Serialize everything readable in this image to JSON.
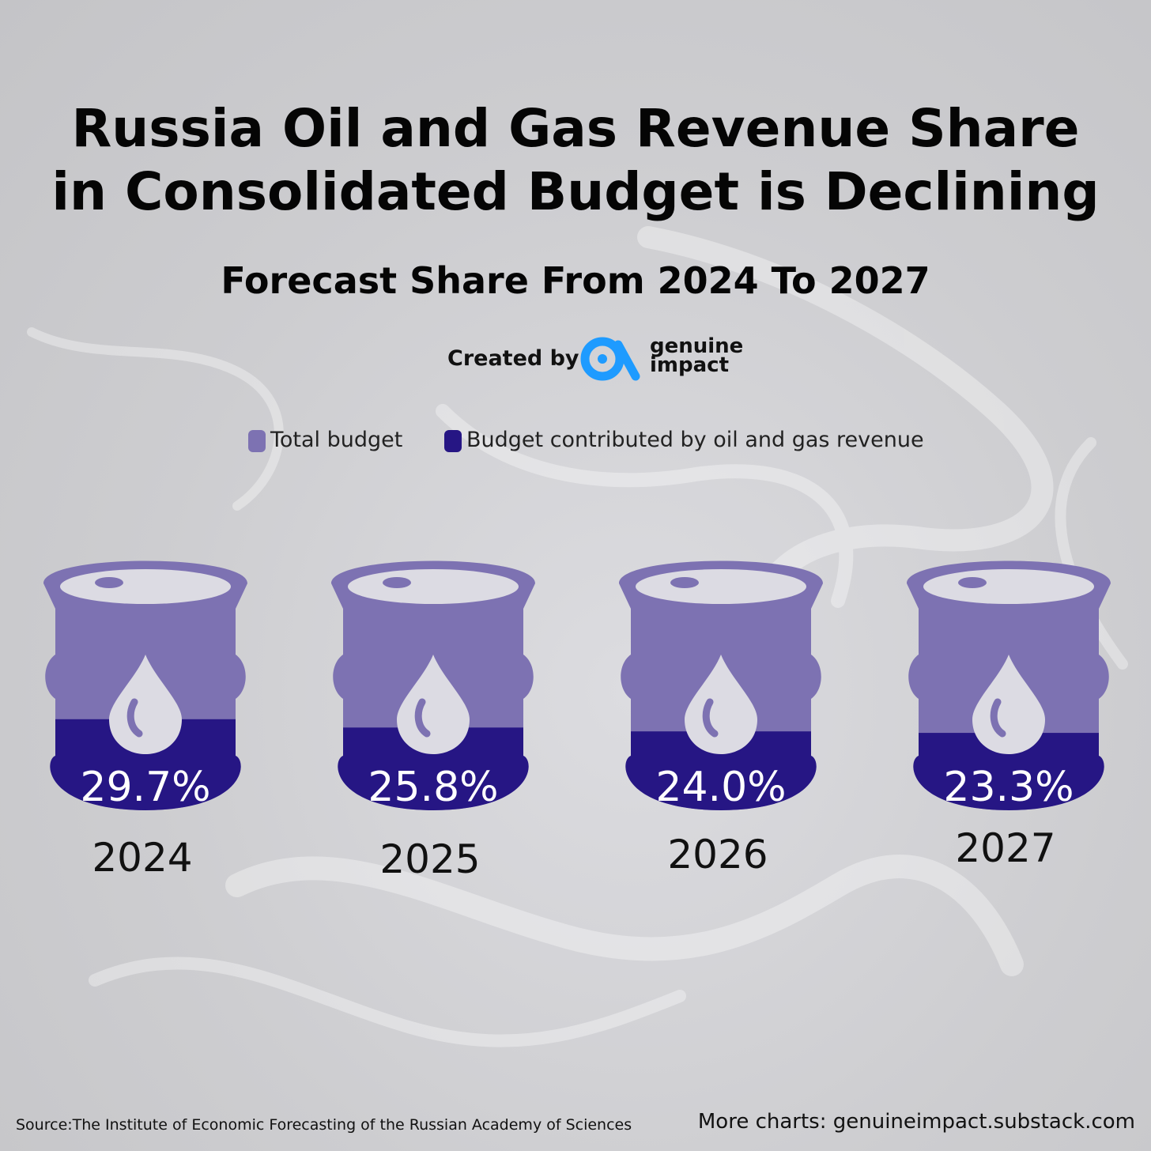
{
  "header": {
    "title_line1": "Russia Oil and Gas Revenue Share",
    "title_line2": "in Consolidated Budget is Declining",
    "subtitle": "Forecast Share From 2024 To 2027"
  },
  "credit": {
    "label": "Created by",
    "brand_line1": "genuine",
    "brand_line2": "impact",
    "brand_color": "#1e9bff"
  },
  "colors": {
    "total": "#7d72b2",
    "oil_gas": "#261684",
    "drop": "#dcdbe3"
  },
  "chart_data": {
    "type": "bar",
    "categories": [
      "2024",
      "2025",
      "2026",
      "2027"
    ],
    "series": [
      {
        "name": "Total budget",
        "values": [
          100,
          100,
          100,
          100
        ]
      },
      {
        "name": "Budget contributed by oil and gas revenue",
        "values": [
          29.7,
          25.8,
          24.0,
          23.3
        ]
      }
    ],
    "labels": [
      "29.7%",
      "25.8%",
      "24.0%",
      "23.3%"
    ],
    "ylim": [
      0,
      100
    ],
    "legend": [
      "Total budget",
      "Budget contributed by oil and gas revenue"
    ],
    "legend_position": "top"
  },
  "footer": {
    "source": "Source:The Institute of Economic Forecasting of the Russian Academy of Sciences",
    "more": "More charts: genuineimpact.substack.com"
  }
}
